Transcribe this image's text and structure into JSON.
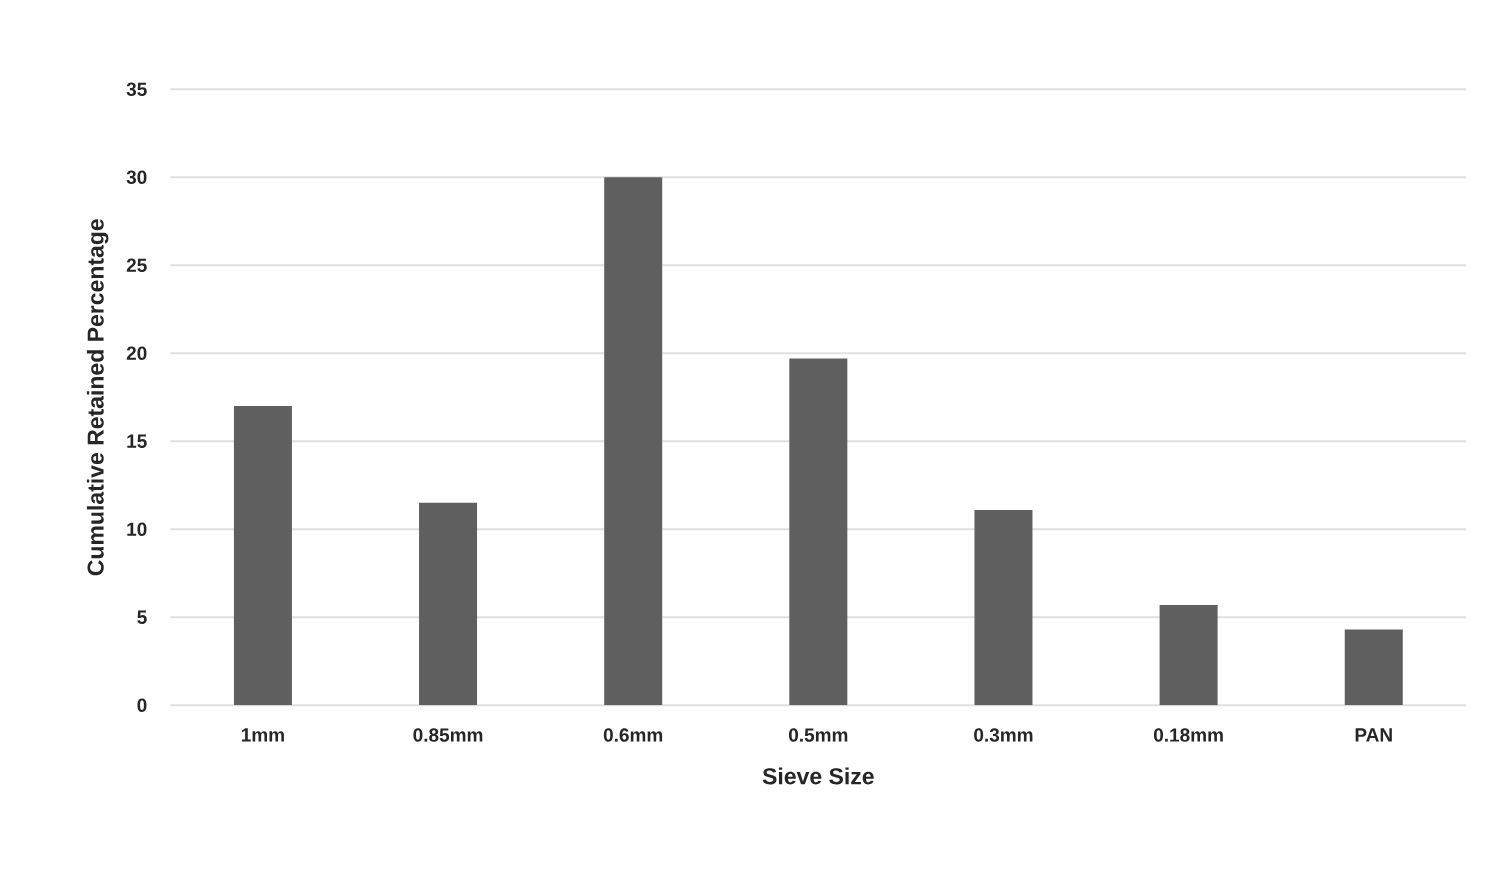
{
  "chart_data": {
    "type": "bar",
    "xlabel": "Sieve Size",
    "ylabel": "Cumulative Retained Percentage",
    "categories": [
      "1mm",
      "0.85mm",
      "0.6mm",
      "0.5mm",
      "0.3mm",
      "0.18mm",
      "PAN"
    ],
    "values": [
      17.0,
      11.5,
      30.0,
      19.7,
      11.1,
      5.7,
      4.3
    ],
    "color": "#5f5f5f",
    "ylim": [
      0,
      35
    ],
    "yticks": [
      0,
      5,
      10,
      15,
      20,
      25,
      30,
      35
    ],
    "grid": "y"
  }
}
